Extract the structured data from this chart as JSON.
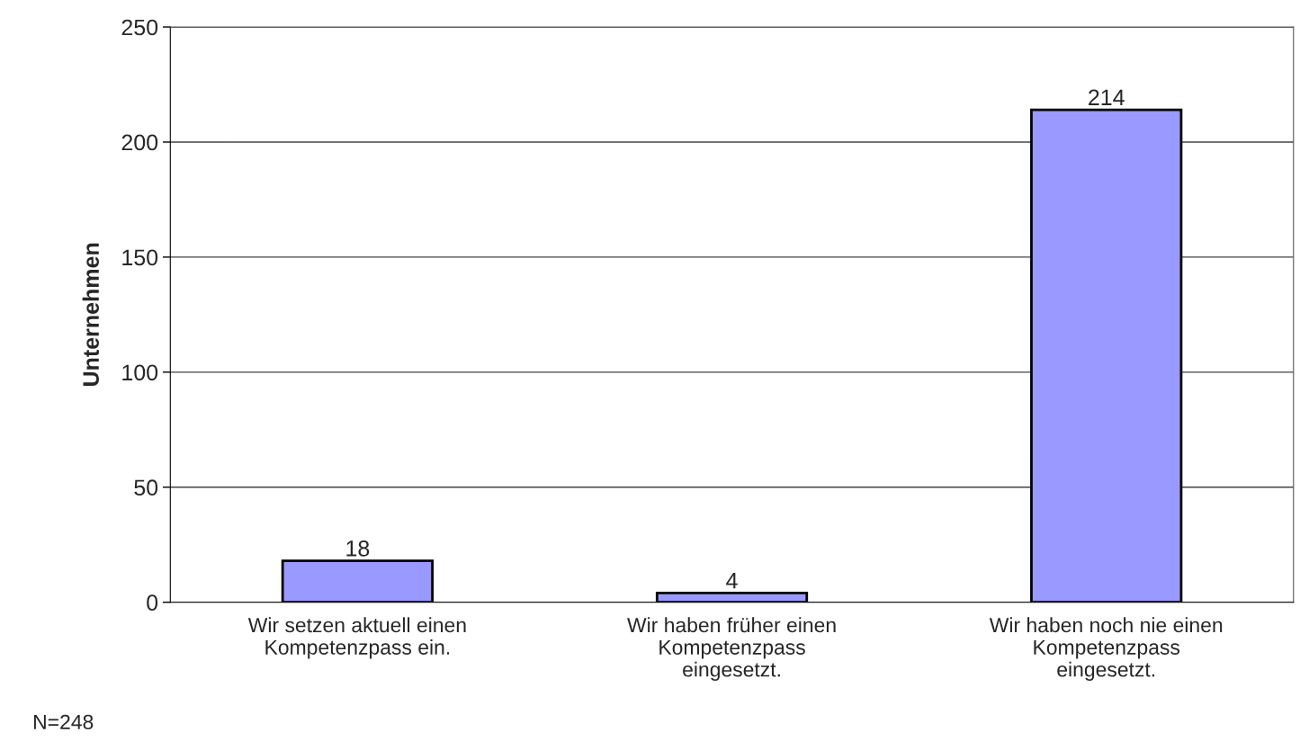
{
  "chart_data": {
    "type": "bar",
    "categories": [
      "Wir setzen aktuell einen\nKompetenzpass ein.",
      "Wir haben früher einen\nKompetenzpass\neingesetzt.",
      "Wir haben noch nie einen\nKompetenzpass\neingesetzt."
    ],
    "values": [
      18,
      4,
      214
    ],
    "color": "#9999ff",
    "data_labels": true,
    "ylabel": "Unternehmen",
    "ylim": [
      0,
      250
    ],
    "yticks": [
      0,
      50,
      100,
      150,
      200,
      250
    ],
    "grid": "y",
    "legend": false,
    "annotations": [
      "N=248"
    ]
  }
}
